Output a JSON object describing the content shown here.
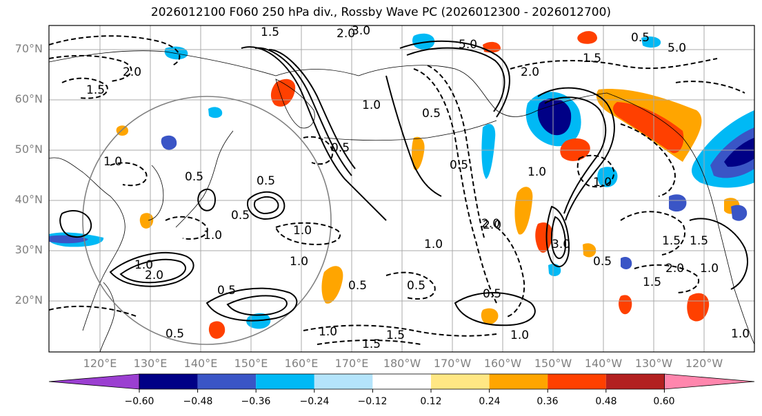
{
  "title": "2026012100 F060 250 hPa div., Rossby Wave PC (2026012300 - 2026012700)",
  "map": {
    "projection": "PlateCarree",
    "lat_range": [
      10,
      75
    ],
    "lon_range": [
      110,
      250
    ],
    "lat_ticks": [
      "70°N",
      "60°N",
      "50°N",
      "40°N",
      "30°N",
      "20°N"
    ],
    "lon_ticks": [
      "120°E",
      "130°E",
      "140°E",
      "150°E",
      "160°E",
      "170°E",
      "180°W",
      "170°W",
      "160°W",
      "150°W",
      "140°W",
      "130°W",
      "120°W"
    ],
    "contour_labels": [
      "1.5",
      "2.0",
      "3.0",
      "2.0",
      "1.5",
      "5.0",
      "2.0",
      "1.5",
      "5.0",
      "1.0",
      "0.5",
      "1.0",
      "0.5",
      "0.5",
      "0.5",
      "0.5",
      "1.0",
      "1.0",
      "1.0",
      "2.0",
      "2.0",
      "1.0",
      "0.5",
      "0.5",
      "1.0",
      "1.5",
      "1.5",
      "1.0",
      "1.5",
      "0.5",
      "1.0",
      "2.0",
      "3.0",
      "1.0",
      "0.5",
      "2.0",
      "1.5",
      "1.0",
      "0.5",
      "0.5",
      "1.0",
      "0.5",
      "1.0",
      "1.5",
      "0.5"
    ]
  },
  "colorbar": {
    "ticks": [
      "−0.60",
      "−0.48",
      "−0.36",
      "−0.24",
      "−0.12",
      "0.12",
      "0.24",
      "0.36",
      "0.48",
      "0.60"
    ],
    "colors": [
      "#9b3fd1",
      "#000086",
      "#3a55c6",
      "#00b9f5",
      "#b4e4fb",
      "#ffffff",
      "#ffe784",
      "#ffa500",
      "#ff4000",
      "#b22020",
      "#ff86ad"
    ]
  },
  "colors": {
    "contour": "#000000",
    "gridline": "#a8a8a8",
    "circle": "#808080",
    "axis_label": "#808080"
  }
}
